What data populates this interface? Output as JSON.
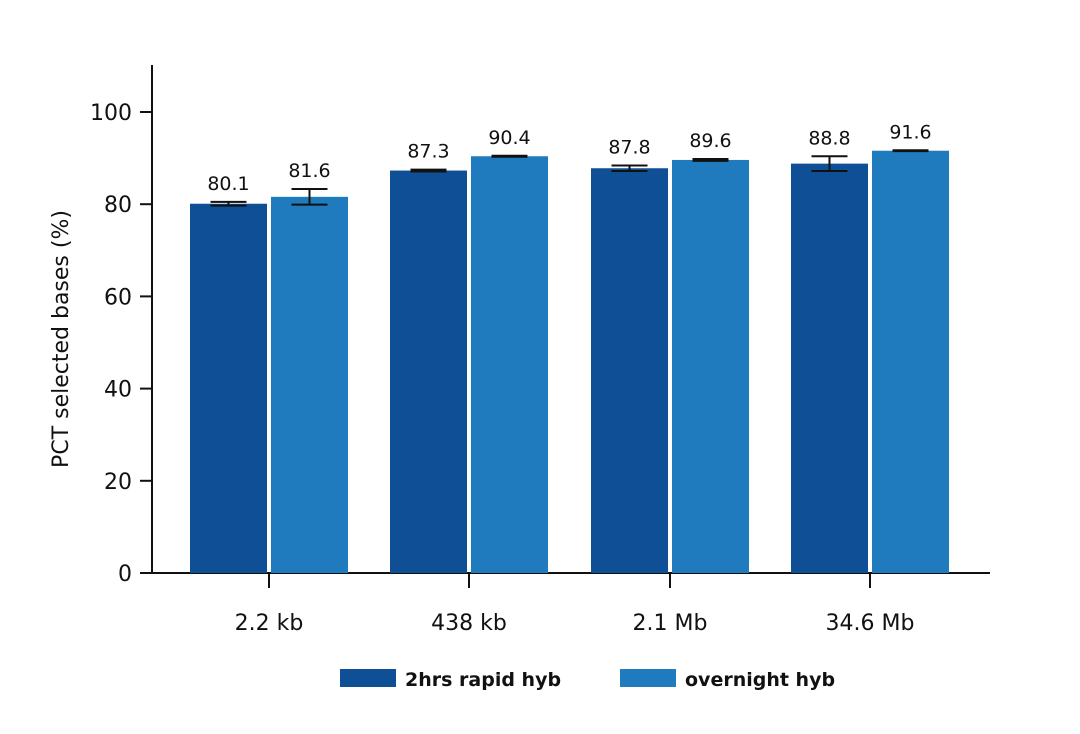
{
  "chart_data": {
    "type": "bar",
    "title": "",
    "xlabel": "",
    "ylabel": "PCT selected bases (%)",
    "ylim": [
      0,
      110
    ],
    "yticks": [
      0,
      20,
      40,
      60,
      80,
      100
    ],
    "categories": [
      "2.2 kb",
      "438 kb",
      "2.1 Mb",
      "34.6 Mb"
    ],
    "series": [
      {
        "name": "2hrs rapid hyb",
        "color": "#0e4f96",
        "values": [
          80.1,
          87.3,
          87.8,
          88.8
        ],
        "value_labels": [
          "80.1",
          "87.3",
          "87.8",
          "88.8"
        ],
        "error": [
          0.4,
          0.2,
          0.6,
          1.6
        ]
      },
      {
        "name": "overnight hyb",
        "color": "#1f7bbd",
        "values": [
          81.6,
          90.4,
          89.6,
          91.6
        ],
        "value_labels": [
          "81.6",
          "90.4",
          "89.6",
          "91.6"
        ],
        "error": [
          1.7,
          0.1,
          0.2,
          0.1
        ]
      }
    ],
    "grid": false,
    "legend_position": "bottom"
  }
}
